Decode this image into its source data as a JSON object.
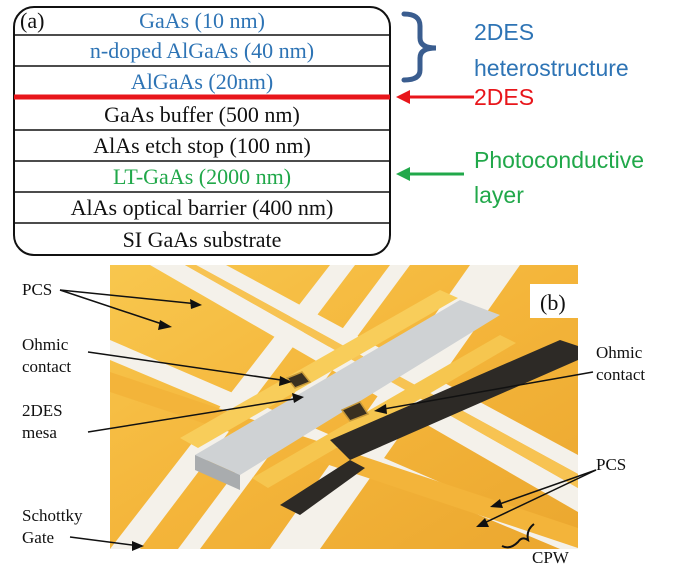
{
  "panel_a": {
    "label": "(a)",
    "layers": [
      {
        "text": "GaAs (10 nm)",
        "color": "#2e74b5"
      },
      {
        "text": "n-doped AlGaAs (40 nm)",
        "color": "#2e74b5"
      },
      {
        "text": "AlGaAs (20nm)",
        "color": "#2e74b5"
      },
      {
        "text": "GaAs buffer (500 nm)",
        "color": "#111111"
      },
      {
        "text": "AlAs etch stop (100 nm)",
        "color": "#111111"
      },
      {
        "text": "LT-GaAs (2000 nm)",
        "color": "#21a84a"
      },
      {
        "text": "AlAs optical barrier (400 nm)",
        "color": "#111111"
      },
      {
        "text": "SI GaAs substrate",
        "color": "#111111"
      }
    ],
    "annotations": {
      "heterostructure_line1": "2DES",
      "heterostructure_line2": "heterostructure",
      "twodes": "2DES",
      "photoconductive_line1": "Photoconductive",
      "photoconductive_line2": "layer"
    },
    "colors": {
      "blue": "#2e74b5",
      "brace": "#3a5d8f",
      "red": "#e8161b",
      "green": "#21a84a"
    }
  },
  "panel_b": {
    "label": "(b)",
    "labels": {
      "pcs_top": "PCS",
      "ohmic_left_1": "Ohmic",
      "ohmic_left_2": "contact",
      "ohmic_right_1": "Ohmic",
      "ohmic_right_2": "contact",
      "mesa_1": "2DES",
      "mesa_2": "mesa",
      "pcs_right": "PCS",
      "schottky_1": "Schottky",
      "schottky_2": "Gate",
      "cpw": "CPW"
    },
    "colors": {
      "gold": "#f2b338",
      "gold_light": "#f8cd5a",
      "gold_dark": "#d9962a",
      "gap": "#f4f1ea",
      "mesa": "#cdd0d2",
      "contact": "#3a3020"
    }
  }
}
